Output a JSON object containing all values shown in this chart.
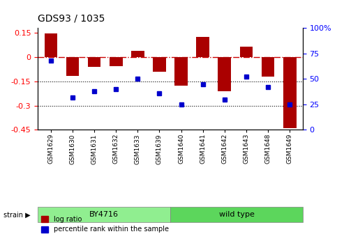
{
  "title": "GDS93 / 1035",
  "samples": [
    "GSM1629",
    "GSM1630",
    "GSM1631",
    "GSM1632",
    "GSM1633",
    "GSM1639",
    "GSM1640",
    "GSM1641",
    "GSM1642",
    "GSM1643",
    "GSM1648",
    "GSM1649"
  ],
  "log_ratio": [
    0.148,
    -0.115,
    -0.06,
    -0.055,
    0.04,
    -0.09,
    -0.175,
    0.125,
    -0.21,
    0.065,
    -0.12,
    -0.44
  ],
  "percentile": [
    68,
    32,
    38,
    40,
    50,
    36,
    25,
    45,
    30,
    52,
    42,
    25
  ],
  "strain_groups": [
    {
      "label": "BY4716",
      "start": 0,
      "end": 5,
      "color": "#90EE90"
    },
    {
      "label": "wild type",
      "start": 6,
      "end": 11,
      "color": "#5CD65C"
    }
  ],
  "bar_color": "#AA0000",
  "dot_color": "#0000CC",
  "ylim_left": [
    -0.45,
    0.18
  ],
  "ylim_right": [
    0,
    100
  ],
  "yticks_left": [
    0.15,
    0,
    -0.15,
    -0.3,
    -0.45
  ],
  "yticks_right": [
    100,
    75,
    50,
    25,
    0
  ],
  "hline_zero_color": "#CC0000",
  "hline_dotted_color": "#000000",
  "background_color": "#ffffff",
  "plot_bg": "#ffffff",
  "legend_items": [
    "log ratio",
    "percentile rank within the sample"
  ],
  "bar_width": 0.6
}
